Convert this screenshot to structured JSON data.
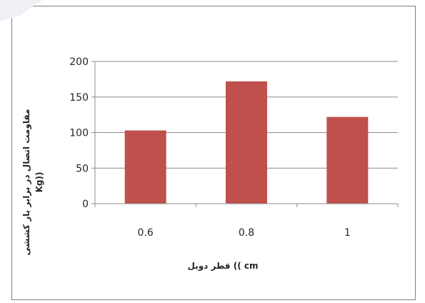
{
  "chart_data": {
    "type": "bar",
    "categories": [
      "0.6",
      "0.8",
      "1"
    ],
    "values": [
      103,
      172,
      122
    ],
    "ylim": [
      0,
      200
    ],
    "yticks": [
      "0",
      "50",
      "100",
      "150",
      "200"
    ],
    "xlabel": "قطر دوبل (( cm",
    "ylabel_line1": "مقاومت اتصال در برابر بار کششی",
    "ylabel_line2": "Kg))",
    "grid": "horizontal",
    "legend": "none",
    "bar_color": "#c0504d",
    "grid_color": "#8c8c8c"
  }
}
